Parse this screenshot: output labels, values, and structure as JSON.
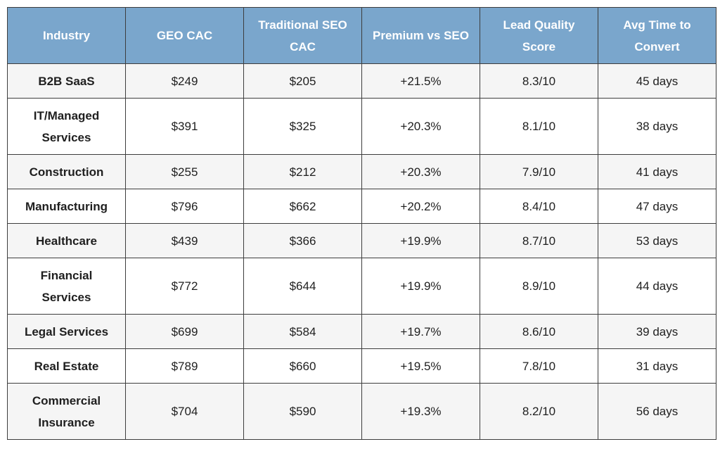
{
  "colors": {
    "header_bg": "#7aa6cc",
    "header_text": "#ffffff",
    "row_odd_bg": "#f5f5f5",
    "row_even_bg": "#ffffff",
    "border": "#3d3d3d"
  },
  "table": {
    "headers": [
      "Industry",
      "GEO CAC",
      "Traditional SEO CAC",
      "Premium vs SEO",
      "Lead Quality Score",
      "Avg Time to Convert"
    ],
    "rows": [
      [
        "B2B SaaS",
        "$249",
        "$205",
        "+21.5%",
        "8.3/10",
        "45 days"
      ],
      [
        "IT/Managed Services",
        "$391",
        "$325",
        "+20.3%",
        "8.1/10",
        "38 days"
      ],
      [
        "Construction",
        "$255",
        "$212",
        "+20.3%",
        "7.9/10",
        "41 days"
      ],
      [
        "Manufacturing",
        "$796",
        "$662",
        "+20.2%",
        "8.4/10",
        "47 days"
      ],
      [
        "Healthcare",
        "$439",
        "$366",
        "+19.9%",
        "8.7/10",
        "53 days"
      ],
      [
        "Financial Services",
        "$772",
        "$644",
        "+19.9%",
        "8.9/10",
        "44 days"
      ],
      [
        "Legal Services",
        "$699",
        "$584",
        "+19.7%",
        "8.6/10",
        "39 days"
      ],
      [
        "Real Estate",
        "$789",
        "$660",
        "+19.5%",
        "7.8/10",
        "31 days"
      ],
      [
        "Commercial Insurance",
        "$704",
        "$590",
        "+19.3%",
        "8.2/10",
        "56 days"
      ]
    ]
  }
}
